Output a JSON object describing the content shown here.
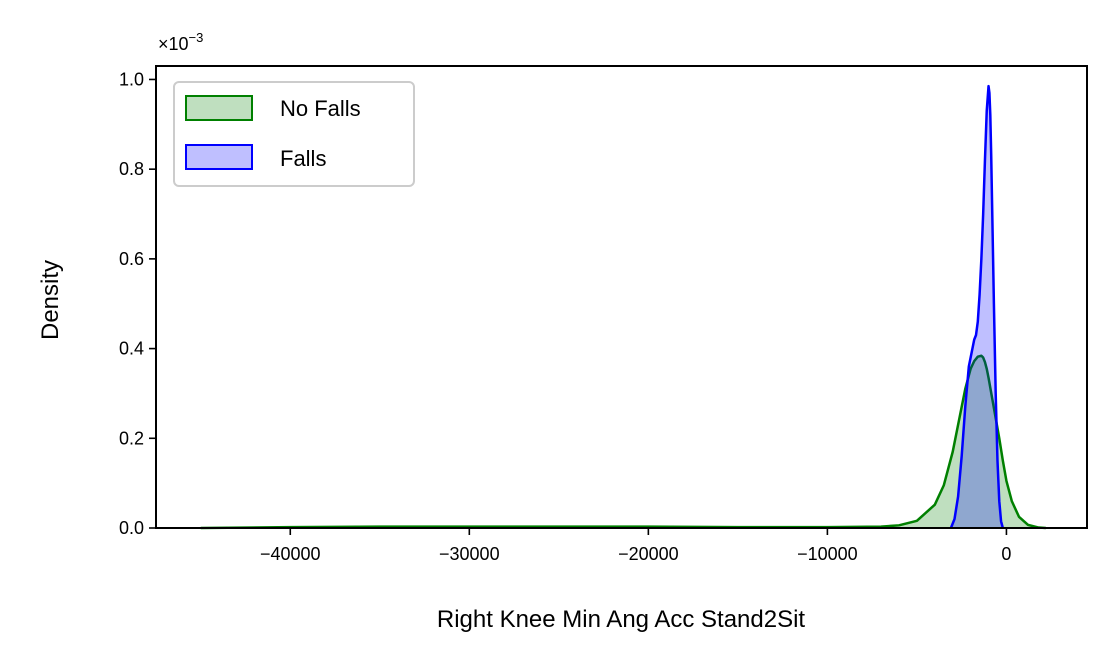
{
  "chart_data": {
    "type": "area",
    "title": "",
    "xlabel": "Right Knee Min Ang Acc Stand2Sit",
    "ylabel": "Density",
    "y_offset_label": "×10",
    "y_offset_exponent": "−3",
    "xlim": [
      -47500,
      4500
    ],
    "ylim": [
      0,
      1.03
    ],
    "x_ticks": [
      -40000,
      -30000,
      -20000,
      -10000,
      0
    ],
    "x_tick_labels": [
      "−40000",
      "−30000",
      "−20000",
      "−10000",
      "0"
    ],
    "y_ticks": [
      0.0,
      0.2,
      0.4,
      0.6,
      0.8,
      1.0
    ],
    "y_tick_labels": [
      "0.0",
      "0.2",
      "0.4",
      "0.6",
      "0.8",
      "1.0"
    ],
    "grid": false,
    "legend_position": "top-left",
    "series": [
      {
        "name": "No Falls",
        "color": "#008000",
        "fill": "rgba(0,128,0,0.25)",
        "x": [
          -45000,
          -40000,
          -35000,
          -30000,
          -25000,
          -20000,
          -15000,
          -10000,
          -7000,
          -6000,
          -5000,
          -4000,
          -3500,
          -3000,
          -2600,
          -2300,
          -2000,
          -1800,
          -1600,
          -1400,
          -1300,
          -1200,
          -1100,
          -1000,
          -800,
          -600,
          -400,
          -200,
          0,
          300,
          700,
          1200,
          1800,
          2200
        ],
        "values": [
          0.0,
          0.002,
          0.003,
          0.003,
          0.003,
          0.003,
          0.002,
          0.002,
          0.003,
          0.006,
          0.016,
          0.052,
          0.095,
          0.17,
          0.25,
          0.31,
          0.355,
          0.372,
          0.382,
          0.384,
          0.38,
          0.37,
          0.355,
          0.335,
          0.29,
          0.245,
          0.2,
          0.15,
          0.105,
          0.06,
          0.025,
          0.007,
          0.001,
          0.0
        ]
      },
      {
        "name": "Falls",
        "color": "#0000ff",
        "fill": "rgba(0,0,255,0.25)",
        "x": [
          -3100,
          -2900,
          -2700,
          -2500,
          -2300,
          -2100,
          -1900,
          -1800,
          -1700,
          -1600,
          -1500,
          -1400,
          -1300,
          -1200,
          -1100,
          -1000,
          -950,
          -900,
          -850,
          -800,
          -700,
          -600,
          -500,
          -400,
          -300,
          -200
        ],
        "values": [
          0.0,
          0.02,
          0.07,
          0.16,
          0.27,
          0.36,
          0.4,
          0.42,
          0.43,
          0.46,
          0.52,
          0.6,
          0.7,
          0.82,
          0.93,
          0.985,
          0.97,
          0.92,
          0.83,
          0.72,
          0.5,
          0.3,
          0.15,
          0.06,
          0.015,
          0.0
        ]
      }
    ]
  }
}
